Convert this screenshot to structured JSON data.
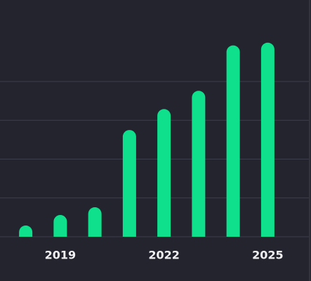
{
  "chart_data": {
    "type": "bar",
    "categories": [
      null,
      "2019",
      null,
      null,
      "2022",
      null,
      null,
      "2025"
    ],
    "values": [
      0.29,
      0.56,
      0.76,
      2.75,
      3.29,
      3.76,
      4.93,
      5.0
    ],
    "color": "#0ee08c",
    "ylim": [
      0,
      6.1
    ],
    "yticks": [
      0,
      1,
      2,
      3,
      4
    ],
    "grid": true
  }
}
